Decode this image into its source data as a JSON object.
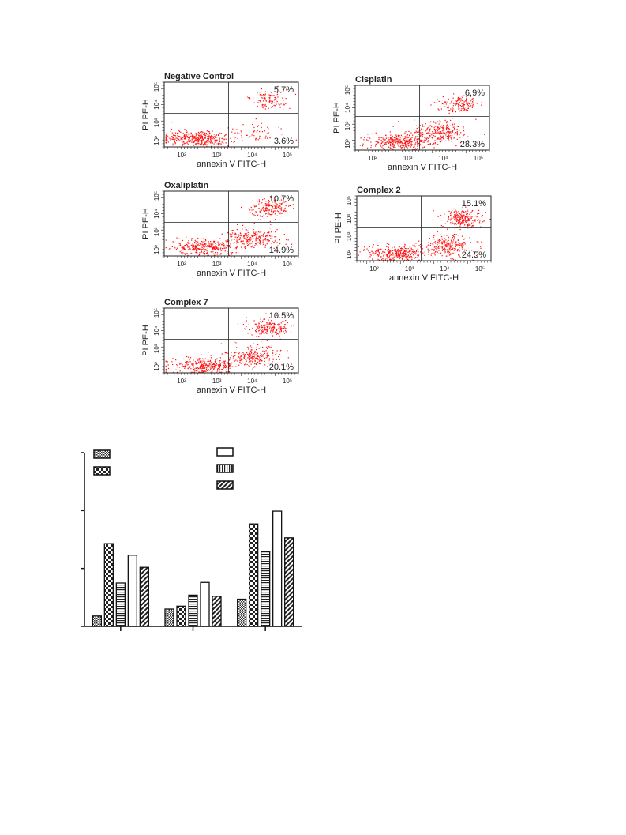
{
  "chart_data": [
    {
      "type": "scatter",
      "title": "Negative Control",
      "xlabel": "annexin V FITC-H",
      "ylabel": "PI PE-H",
      "x_scale": "log",
      "y_scale": "log",
      "x_ticks": [
        "10²",
        "10³",
        "10⁴",
        "10⁵"
      ],
      "y_ticks": [
        "10²",
        "10³",
        "10⁴",
        "10⁵"
      ],
      "quadrant_upper_right": "5.7%",
      "quadrant_lower_right": "3.6%"
    },
    {
      "type": "scatter",
      "title": "Cisplatin",
      "xlabel": "annexin V FITC-H",
      "ylabel": "PI PE-H",
      "x_scale": "log",
      "y_scale": "log",
      "x_ticks": [
        "10²",
        "10³",
        "10⁴",
        "10⁵"
      ],
      "y_ticks": [
        "10²",
        "10³",
        "10⁴",
        "10⁵"
      ],
      "quadrant_upper_right": "6.9%",
      "quadrant_lower_right": "28.3%"
    },
    {
      "type": "scatter",
      "title": "Oxaliplatin",
      "xlabel": "annexin V FITC-H",
      "ylabel": "PI PE-H",
      "x_scale": "log",
      "y_scale": "log",
      "x_ticks": [
        "10²",
        "10³",
        "10⁴",
        "10⁵"
      ],
      "y_ticks": [
        "10²",
        "10³",
        "10⁴",
        "10⁵"
      ],
      "quadrant_upper_right": "10.7%",
      "quadrant_lower_right": "14.9%"
    },
    {
      "type": "scatter",
      "title": "Complex 2",
      "xlabel": "annexin V FITC-H",
      "ylabel": "PI PE-H",
      "x_scale": "log",
      "y_scale": "log",
      "x_ticks": [
        "10²",
        "10³",
        "10⁴",
        "10⁵"
      ],
      "y_ticks": [
        "10²",
        "10³",
        "10⁴",
        "10⁵"
      ],
      "quadrant_upper_right": "15.1%",
      "quadrant_lower_right": "24.5%"
    },
    {
      "type": "scatter",
      "title": "Complex 7",
      "xlabel": "annexin V FITC-H",
      "ylabel": "PI PE-H",
      "x_scale": "log",
      "y_scale": "log",
      "x_ticks": [
        "10²",
        "10³",
        "10⁴",
        "10⁵"
      ],
      "y_ticks": [
        "10²",
        "10³",
        "10⁴",
        "10⁵"
      ],
      "quadrant_upper_right": "10.5%",
      "quadrant_lower_right": "20.1%"
    },
    {
      "type": "bar",
      "categories": [
        "",
        "",
        ""
      ],
      "ylim": [
        0,
        30
      ],
      "series": [
        {
          "pattern": "crosshatch-fine",
          "values": [
            1.8,
            3.0,
            4.7
          ]
        },
        {
          "pattern": "checker",
          "values": [
            14.3,
            3.5,
            17.7
          ]
        },
        {
          "pattern": "horizontal-lines",
          "values": [
            7.5,
            5.4,
            12.9
          ]
        },
        {
          "pattern": "open",
          "values": [
            12.3,
            7.6,
            19.9
          ]
        },
        {
          "pattern": "vertical-lines",
          "values": [
            0,
            0,
            0
          ]
        },
        {
          "pattern": "diagonal",
          "values": [
            10.2,
            5.2,
            15.3
          ]
        }
      ],
      "legend_placement": "top",
      "colors": {
        "scatter": "#ff1010",
        "bars": "#333333"
      }
    }
  ]
}
